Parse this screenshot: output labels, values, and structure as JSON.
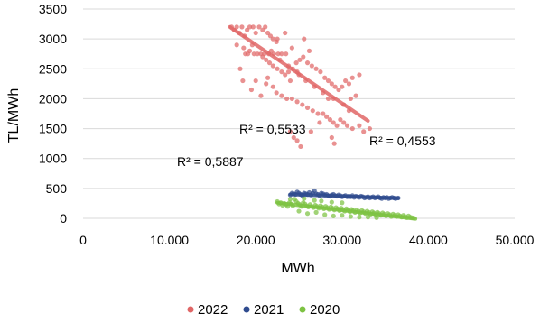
{
  "chart_data": {
    "type": "scatter",
    "title": "",
    "xlabel": "MWh",
    "ylabel": "TL/MWh",
    "xlim": [
      0,
      50000
    ],
    "ylim": [
      0,
      3500
    ],
    "x_ticks": [
      "0",
      "10.000",
      "20.000",
      "30.000",
      "40.000",
      "50.000"
    ],
    "y_ticks": [
      "0",
      "500",
      "1000",
      "1500",
      "2000",
      "2500",
      "3000",
      "3500"
    ],
    "grid": "horizontal",
    "legend_position": "bottom",
    "series": [
      {
        "name": "2022",
        "color": "#e06666",
        "trendline": {
          "x": [
            17000,
            33000
          ],
          "y": [
            3200,
            1630
          ]
        },
        "points": [
          [
            17200,
            3200
          ],
          [
            17500,
            3150
          ],
          [
            17800,
            3200
          ],
          [
            18100,
            3100
          ],
          [
            18400,
            3200
          ],
          [
            18700,
            3050
          ],
          [
            19000,
            3150
          ],
          [
            19300,
            3200
          ],
          [
            19700,
            3200
          ],
          [
            20000,
            3100
          ],
          [
            20400,
            3200
          ],
          [
            20800,
            3150
          ],
          [
            21100,
            3200
          ],
          [
            21400,
            3100
          ],
          [
            21700,
            3050
          ],
          [
            22000,
            3000
          ],
          [
            22400,
            2950
          ],
          [
            17800,
            2900
          ],
          [
            18600,
            2850
          ],
          [
            19300,
            2800
          ],
          [
            19800,
            2750
          ],
          [
            20200,
            2750
          ],
          [
            20600,
            2750
          ],
          [
            21000,
            2750
          ],
          [
            21500,
            2750
          ],
          [
            22100,
            2750
          ],
          [
            22600,
            2750
          ],
          [
            23000,
            2750
          ],
          [
            23500,
            2750
          ],
          [
            18800,
            2750
          ],
          [
            19100,
            2750
          ],
          [
            20800,
            2700
          ],
          [
            21200,
            2650
          ],
          [
            21600,
            2600
          ],
          [
            22000,
            2550
          ],
          [
            22500,
            2500
          ],
          [
            23000,
            2450
          ],
          [
            23400,
            2400
          ],
          [
            23800,
            2450
          ],
          [
            24300,
            2500
          ],
          [
            24700,
            2600
          ],
          [
            25100,
            2650
          ],
          [
            25500,
            2700
          ],
          [
            26000,
            2600
          ],
          [
            26500,
            2550
          ],
          [
            27000,
            2500
          ],
          [
            27500,
            2450
          ],
          [
            28000,
            2350
          ],
          [
            28400,
            2300
          ],
          [
            28800,
            2250
          ],
          [
            29200,
            2200
          ],
          [
            29600,
            2150
          ],
          [
            30000,
            2200
          ],
          [
            30400,
            2300
          ],
          [
            30800,
            2250
          ],
          [
            31200,
            2350
          ],
          [
            32000,
            2400
          ],
          [
            20000,
            2300
          ],
          [
            21200,
            2250
          ],
          [
            22000,
            2200
          ],
          [
            22400,
            2100
          ],
          [
            23000,
            2050
          ],
          [
            23600,
            2000
          ],
          [
            24200,
            2000
          ],
          [
            24800,
            1950
          ],
          [
            25400,
            1900
          ],
          [
            26000,
            1850
          ],
          [
            26600,
            1800
          ],
          [
            27200,
            1750
          ],
          [
            27800,
            1750
          ],
          [
            28200,
            1700
          ],
          [
            28600,
            1650
          ],
          [
            29000,
            1600
          ],
          [
            29400,
            1550
          ],
          [
            29800,
            1650
          ],
          [
            30200,
            1600
          ],
          [
            30600,
            1550
          ],
          [
            31200,
            1500
          ],
          [
            32000,
            1550
          ],
          [
            32500,
            1450
          ],
          [
            33200,
            1500
          ],
          [
            24000,
            1450
          ],
          [
            24400,
            1350
          ],
          [
            24800,
            1300
          ],
          [
            25200,
            1200
          ],
          [
            26400,
            1450
          ],
          [
            27400,
            1600
          ],
          [
            28800,
            1350
          ],
          [
            29100,
            1250
          ],
          [
            30200,
            1900
          ],
          [
            30800,
            1800
          ],
          [
            31000,
            2000
          ],
          [
            31600,
            2050
          ],
          [
            29000,
            2000
          ],
          [
            28400,
            2000
          ],
          [
            27800,
            2100
          ],
          [
            26800,
            2200
          ],
          [
            25800,
            2300
          ],
          [
            24800,
            2450
          ],
          [
            23800,
            2550
          ],
          [
            22800,
            2650
          ],
          [
            21800,
            2800
          ],
          [
            19600,
            2900
          ],
          [
            18200,
            2500
          ],
          [
            18500,
            2300
          ],
          [
            19500,
            2150
          ],
          [
            20600,
            2050
          ],
          [
            22500,
            3000
          ],
          [
            25600,
            3000
          ],
          [
            26200,
            2800
          ],
          [
            23400,
            3100
          ],
          [
            24200,
            2850
          ],
          [
            25000,
            2400
          ],
          [
            24000,
            2300
          ],
          [
            21400,
            2350
          ]
        ]
      },
      {
        "name": "2021",
        "color": "#2f4b8e",
        "trendline": {
          "x": [
            24000,
            36500
          ],
          "y": [
            400,
            335
          ]
        },
        "points": [
          [
            24000,
            390
          ],
          [
            24200,
            420
          ],
          [
            24400,
            410
          ],
          [
            24600,
            400
          ],
          [
            24800,
            440
          ],
          [
            25000,
            420
          ],
          [
            25200,
            400
          ],
          [
            25400,
            380
          ],
          [
            25600,
            420
          ],
          [
            25800,
            410
          ],
          [
            26000,
            400
          ],
          [
            26200,
            430
          ],
          [
            26400,
            390
          ],
          [
            26600,
            420
          ],
          [
            26800,
            460
          ],
          [
            27000,
            410
          ],
          [
            27200,
            400
          ],
          [
            27400,
            380
          ],
          [
            27600,
            420
          ],
          [
            27800,
            410
          ],
          [
            28000,
            390
          ],
          [
            28200,
            400
          ],
          [
            28400,
            380
          ],
          [
            28600,
            370
          ],
          [
            28800,
            390
          ],
          [
            29000,
            400
          ],
          [
            29200,
            380
          ],
          [
            29400,
            370
          ],
          [
            29600,
            390
          ],
          [
            29800,
            380
          ],
          [
            30000,
            360
          ],
          [
            30200,
            370
          ],
          [
            30400,
            380
          ],
          [
            30600,
            360
          ],
          [
            30800,
            370
          ],
          [
            31000,
            360
          ],
          [
            31200,
            380
          ],
          [
            31400,
            350
          ],
          [
            31600,
            370
          ],
          [
            31800,
            360
          ],
          [
            32000,
            350
          ],
          [
            32200,
            370
          ],
          [
            32400,
            360
          ],
          [
            32600,
            340
          ],
          [
            32800,
            350
          ],
          [
            33000,
            360
          ],
          [
            33200,
            340
          ],
          [
            33400,
            350
          ],
          [
            33600,
            360
          ],
          [
            33800,
            340
          ],
          [
            34000,
            350
          ],
          [
            34200,
            360
          ],
          [
            34400,
            340
          ],
          [
            34600,
            330
          ],
          [
            34800,
            350
          ],
          [
            35000,
            340
          ],
          [
            35200,
            350
          ],
          [
            35400,
            330
          ],
          [
            35600,
            340
          ],
          [
            35800,
            350
          ],
          [
            36000,
            340
          ],
          [
            36200,
            330
          ],
          [
            36500,
            340
          ]
        ]
      },
      {
        "name": "2020",
        "color": "#7dc242",
        "trendline": {
          "x": [
            22500,
            38500
          ],
          "y": [
            260,
            -10
          ]
        },
        "points": [
          [
            22500,
            280
          ],
          [
            22700,
            240
          ],
          [
            22900,
            260
          ],
          [
            23100,
            220
          ],
          [
            23300,
            250
          ],
          [
            23500,
            230
          ],
          [
            23700,
            200
          ],
          [
            23900,
            260
          ],
          [
            24100,
            240
          ],
          [
            24300,
            210
          ],
          [
            24500,
            320
          ],
          [
            24700,
            280
          ],
          [
            24900,
            250
          ],
          [
            25100,
            230
          ],
          [
            25300,
            200
          ],
          [
            25500,
            260
          ],
          [
            25700,
            240
          ],
          [
            25900,
            210
          ],
          [
            26100,
            190
          ],
          [
            26300,
            230
          ],
          [
            26500,
            200
          ],
          [
            26700,
            180
          ],
          [
            26900,
            220
          ],
          [
            27100,
            200
          ],
          [
            27300,
            170
          ],
          [
            27500,
            210
          ],
          [
            27700,
            190
          ],
          [
            27900,
            160
          ],
          [
            28100,
            200
          ],
          [
            28300,
            180
          ],
          [
            28500,
            150
          ],
          [
            28700,
            190
          ],
          [
            28900,
            170
          ],
          [
            29100,
            140
          ],
          [
            29300,
            180
          ],
          [
            29500,
            160
          ],
          [
            29700,
            130
          ],
          [
            29900,
            170
          ],
          [
            30100,
            150
          ],
          [
            30300,
            120
          ],
          [
            30500,
            160
          ],
          [
            30700,
            140
          ],
          [
            30900,
            110
          ],
          [
            31100,
            150
          ],
          [
            31300,
            130
          ],
          [
            31500,
            100
          ],
          [
            31700,
            140
          ],
          [
            31900,
            120
          ],
          [
            32100,
            90
          ],
          [
            32300,
            130
          ],
          [
            32500,
            110
          ],
          [
            32700,
            80
          ],
          [
            32900,
            120
          ],
          [
            33100,
            100
          ],
          [
            33300,
            70
          ],
          [
            33500,
            110
          ],
          [
            33700,
            90
          ],
          [
            33900,
            60
          ],
          [
            34100,
            100
          ],
          [
            34300,
            80
          ],
          [
            34500,
            50
          ],
          [
            34700,
            90
          ],
          [
            34900,
            70
          ],
          [
            35100,
            40
          ],
          [
            35300,
            80
          ],
          [
            35500,
            60
          ],
          [
            35700,
            30
          ],
          [
            35900,
            70
          ],
          [
            36100,
            50
          ],
          [
            36300,
            30
          ],
          [
            36500,
            60
          ],
          [
            36700,
            40
          ],
          [
            36900,
            20
          ],
          [
            37100,
            50
          ],
          [
            37300,
            30
          ],
          [
            37500,
            10
          ],
          [
            37700,
            40
          ],
          [
            37900,
            20
          ],
          [
            38100,
            10
          ],
          [
            38300,
            5
          ],
          [
            26000,
            80
          ],
          [
            25000,
            120
          ],
          [
            27000,
            100
          ],
          [
            28000,
            60
          ],
          [
            29000,
            40
          ],
          [
            30000,
            50
          ],
          [
            31000,
            30
          ],
          [
            32000,
            20
          ],
          [
            33000,
            20
          ],
          [
            34000,
            10
          ],
          [
            24000,
            320
          ],
          [
            25600,
            330
          ],
          [
            26800,
            300
          ],
          [
            27600,
            290
          ],
          [
            28800,
            270
          ],
          [
            30000,
            260
          ]
        ]
      }
    ],
    "annotations": [
      "R² = 0,5533",
      "R² = 0,4553",
      "R² = 0,5887"
    ]
  }
}
